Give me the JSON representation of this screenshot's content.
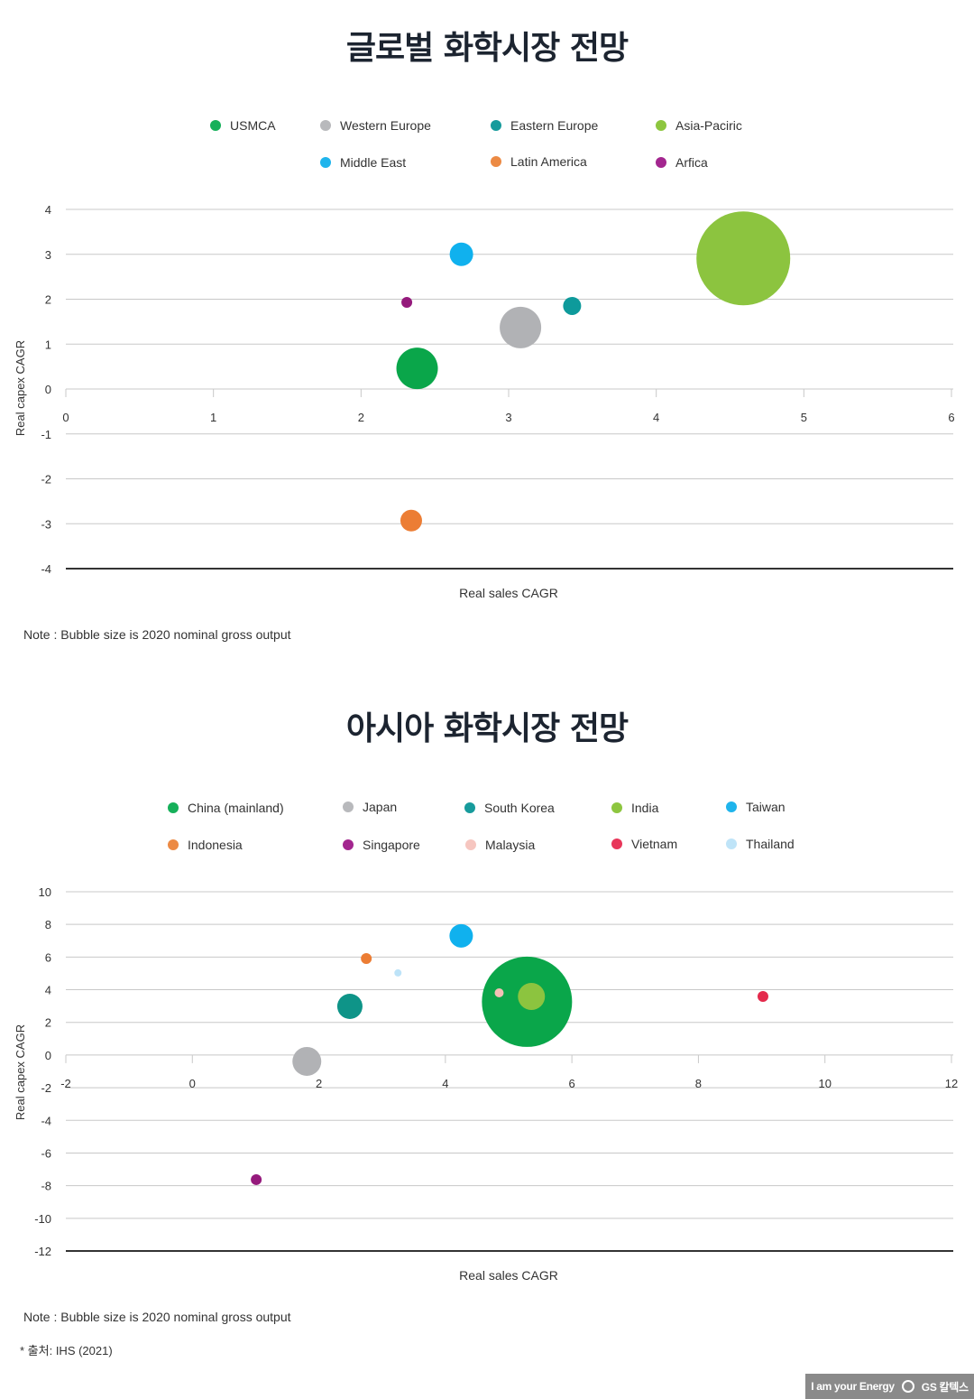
{
  "charts": [
    {
      "title": "글로벌 화학시장 전망",
      "legend": [
        {
          "label": "USMCA",
          "color": "#16b05a"
        },
        {
          "label": "Western Europe",
          "color": "#b8b9bc"
        },
        {
          "label": "Eastern Europe",
          "color": "#179b9c"
        },
        {
          "label": "Asia-Paciric",
          "color": "#8dc63f"
        },
        {
          "label": "Middle East",
          "color": "#1fb4ec"
        },
        {
          "label": "Latin America",
          "color": "#ec8a44"
        },
        {
          "label": "Arfica",
          "color": "#a3268f"
        }
      ],
      "xlabel": "Real sales CAGR",
      "ylabel": "Real capex CAGR",
      "note": "Note : Bubble size is 2020 nominal gross output"
    },
    {
      "title": "아시아 화학시장 전망",
      "legend": [
        {
          "label": "China (mainland)",
          "color": "#16b05a"
        },
        {
          "label": "Japan",
          "color": "#b8b9bc"
        },
        {
          "label": "South Korea",
          "color": "#179b9c"
        },
        {
          "label": "India",
          "color": "#8dc63f"
        },
        {
          "label": "Taiwan",
          "color": "#1fb4ec"
        },
        {
          "label": "Indonesia",
          "color": "#ec8a44"
        },
        {
          "label": "Singapore",
          "color": "#a3268f"
        },
        {
          "label": "Malaysia",
          "color": "#f6c6c0"
        },
        {
          "label": "Vietnam",
          "color": "#e8365a"
        },
        {
          "label": "Thailand",
          "color": "#bfe4f8"
        }
      ],
      "xlabel": "Real sales CAGR",
      "ylabel": "Real capex CAGR",
      "note": "Note : Bubble size is 2020 nominal gross output"
    }
  ],
  "source": "* 출처: IHS (2021)",
  "brand": {
    "slogan": "I am your Energy",
    "logo": "GS 칼텍스"
  },
  "chart_data": [
    {
      "type": "scatter",
      "subtype": "bubble",
      "title": "글로벌 화학시장 전망",
      "xlabel": "Real sales CAGR",
      "ylabel": "Real capex CAGR",
      "xlim": [
        0,
        6
      ],
      "ylim": [
        -4,
        4
      ],
      "xticks": [
        0,
        1,
        2,
        3,
        4,
        5,
        6
      ],
      "yticks": [
        4,
        3,
        2,
        1,
        0,
        -1,
        -2,
        -3,
        -4
      ],
      "grid": true,
      "legend_position": "top",
      "series": [
        {
          "name": "USMCA",
          "x": 2.38,
          "y": 0.46,
          "size": 23,
          "color": "#0aa64a"
        },
        {
          "name": "Western Europe",
          "x": 3.08,
          "y": 1.37,
          "size": 23,
          "color": "#b1b2b5"
        },
        {
          "name": "Eastern Europe",
          "x": 3.43,
          "y": 1.85,
          "size": 10,
          "color": "#0e9a9b"
        },
        {
          "name": "Asia-Paciric",
          "x": 4.59,
          "y": 2.91,
          "size": 52,
          "color": "#8cc43f"
        },
        {
          "name": "Middle East",
          "x": 2.68,
          "y": 3.0,
          "size": 13,
          "color": "#10b1ee"
        },
        {
          "name": "Latin America",
          "x": 2.34,
          "y": -2.93,
          "size": 12,
          "color": "#ec7d34"
        },
        {
          "name": "Arfica",
          "x": 2.31,
          "y": 1.93,
          "size": 6,
          "color": "#951a7c"
        }
      ],
      "note": "Note : Bubble size is 2020 nominal gross output"
    },
    {
      "type": "scatter",
      "subtype": "bubble",
      "title": "아시아 화학시장 전망",
      "xlabel": "Real sales CAGR",
      "ylabel": "Real capex CAGR",
      "xlim": [
        -2,
        12
      ],
      "ylim": [
        -12,
        10
      ],
      "xticks": [
        -2,
        0,
        2,
        4,
        6,
        8,
        10,
        12
      ],
      "yticks": [
        10,
        8,
        6,
        4,
        2,
        0,
        -2,
        -4,
        -6,
        -8,
        -10,
        -12
      ],
      "grid": true,
      "legend_position": "top",
      "series": [
        {
          "name": "China (mainland)",
          "x": 5.29,
          "y": 3.26,
          "size": 50,
          "color": "#0aa64a"
        },
        {
          "name": "Japan",
          "x": 1.81,
          "y": -0.39,
          "size": 16,
          "color": "#b1b2b5"
        },
        {
          "name": "South Korea",
          "x": 2.49,
          "y": 2.98,
          "size": 14,
          "color": "#0e9488"
        },
        {
          "name": "India",
          "x": 5.36,
          "y": 3.59,
          "size": 15,
          "color": "#8cc43f"
        },
        {
          "name": "Taiwan",
          "x": 4.25,
          "y": 7.3,
          "size": 13,
          "color": "#10b1ee"
        },
        {
          "name": "Indonesia",
          "x": 2.75,
          "y": 5.91,
          "size": 6,
          "color": "#ec7d34"
        },
        {
          "name": "Singapore",
          "x": 1.01,
          "y": -7.63,
          "size": 6,
          "color": "#951a7c"
        },
        {
          "name": "Malaysia",
          "x": 4.85,
          "y": 3.81,
          "size": 5,
          "color": "#f4c0b6"
        },
        {
          "name": "Vietnam",
          "x": 9.02,
          "y": 3.59,
          "size": 6,
          "color": "#e42a4c"
        },
        {
          "name": "Thailand",
          "x": 3.25,
          "y": 5.03,
          "size": 4,
          "color": "#bde3f8"
        }
      ],
      "note": "Note : Bubble size is 2020 nominal gross output"
    }
  ]
}
